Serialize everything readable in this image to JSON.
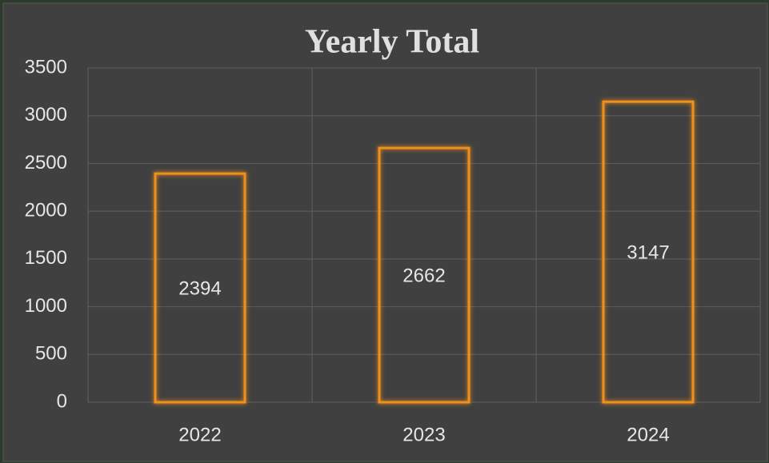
{
  "chart_data": {
    "type": "bar",
    "title": "Yearly Total",
    "categories": [
      "2022",
      "2023",
      "2024"
    ],
    "values": [
      2394,
      2662,
      3147
    ],
    "color": "#f0901a",
    "ylim": [
      0,
      3500
    ],
    "yticks": [
      0,
      500,
      1000,
      1500,
      2000,
      2500,
      3000,
      3500
    ],
    "grid": true
  }
}
